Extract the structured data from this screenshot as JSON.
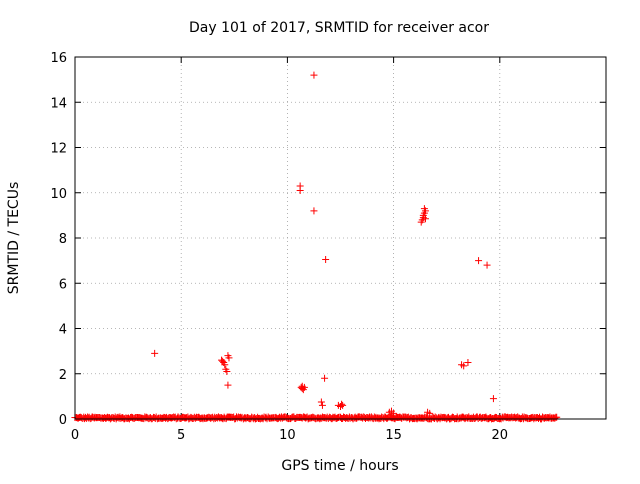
{
  "chart_data": {
    "type": "scatter",
    "title": "Day 101 of 2017, SRMTID for receiver acor",
    "xlabel": "GPS time / hours",
    "ylabel": "SRMTID / TECUs",
    "xlim": [
      0,
      25
    ],
    "ylim": [
      0,
      16
    ],
    "xticks": [
      "0",
      "5",
      "10",
      "15",
      "20"
    ],
    "yticks": [
      "0",
      "2",
      "4",
      "6",
      "8",
      "10",
      "12",
      "14",
      "16"
    ],
    "grid": true,
    "marker": "+",
    "color": "#ff0000",
    "baseline": {
      "x_start": 0.0,
      "x_end": 22.7,
      "y_typical": 0.05
    },
    "points": [
      [
        3.75,
        2.9
      ],
      [
        6.9,
        2.6
      ],
      [
        7.0,
        2.5
      ],
      [
        7.05,
        2.4
      ],
      [
        6.95,
        2.55
      ],
      [
        7.1,
        2.2
      ],
      [
        7.15,
        2.1
      ],
      [
        7.2,
        2.8
      ],
      [
        7.25,
        2.7
      ],
      [
        7.2,
        1.5
      ],
      [
        10.6,
        10.3
      ],
      [
        10.6,
        10.1
      ],
      [
        10.65,
        1.4
      ],
      [
        10.7,
        1.35
      ],
      [
        10.75,
        1.3
      ],
      [
        10.8,
        1.4
      ],
      [
        10.7,
        1.45
      ],
      [
        11.25,
        15.2
      ],
      [
        11.25,
        9.2
      ],
      [
        11.6,
        0.75
      ],
      [
        11.65,
        0.6
      ],
      [
        11.75,
        1.8
      ],
      [
        11.8,
        7.05
      ],
      [
        12.4,
        0.6
      ],
      [
        12.5,
        0.55
      ],
      [
        12.55,
        0.65
      ],
      [
        12.6,
        0.6
      ],
      [
        14.8,
        0.3
      ],
      [
        14.9,
        0.35
      ],
      [
        15.0,
        0.25
      ],
      [
        16.3,
        8.7
      ],
      [
        16.35,
        8.8
      ],
      [
        16.4,
        8.9
      ],
      [
        16.4,
        9.0
      ],
      [
        16.45,
        9.1
      ],
      [
        16.5,
        9.2
      ],
      [
        16.5,
        8.85
      ],
      [
        16.45,
        9.3
      ],
      [
        16.6,
        0.3
      ],
      [
        16.7,
        0.25
      ],
      [
        18.2,
        2.4
      ],
      [
        18.3,
        2.35
      ],
      [
        18.5,
        2.5
      ],
      [
        19.0,
        7.0
      ],
      [
        19.4,
        6.8
      ],
      [
        19.7,
        0.9
      ]
    ]
  }
}
